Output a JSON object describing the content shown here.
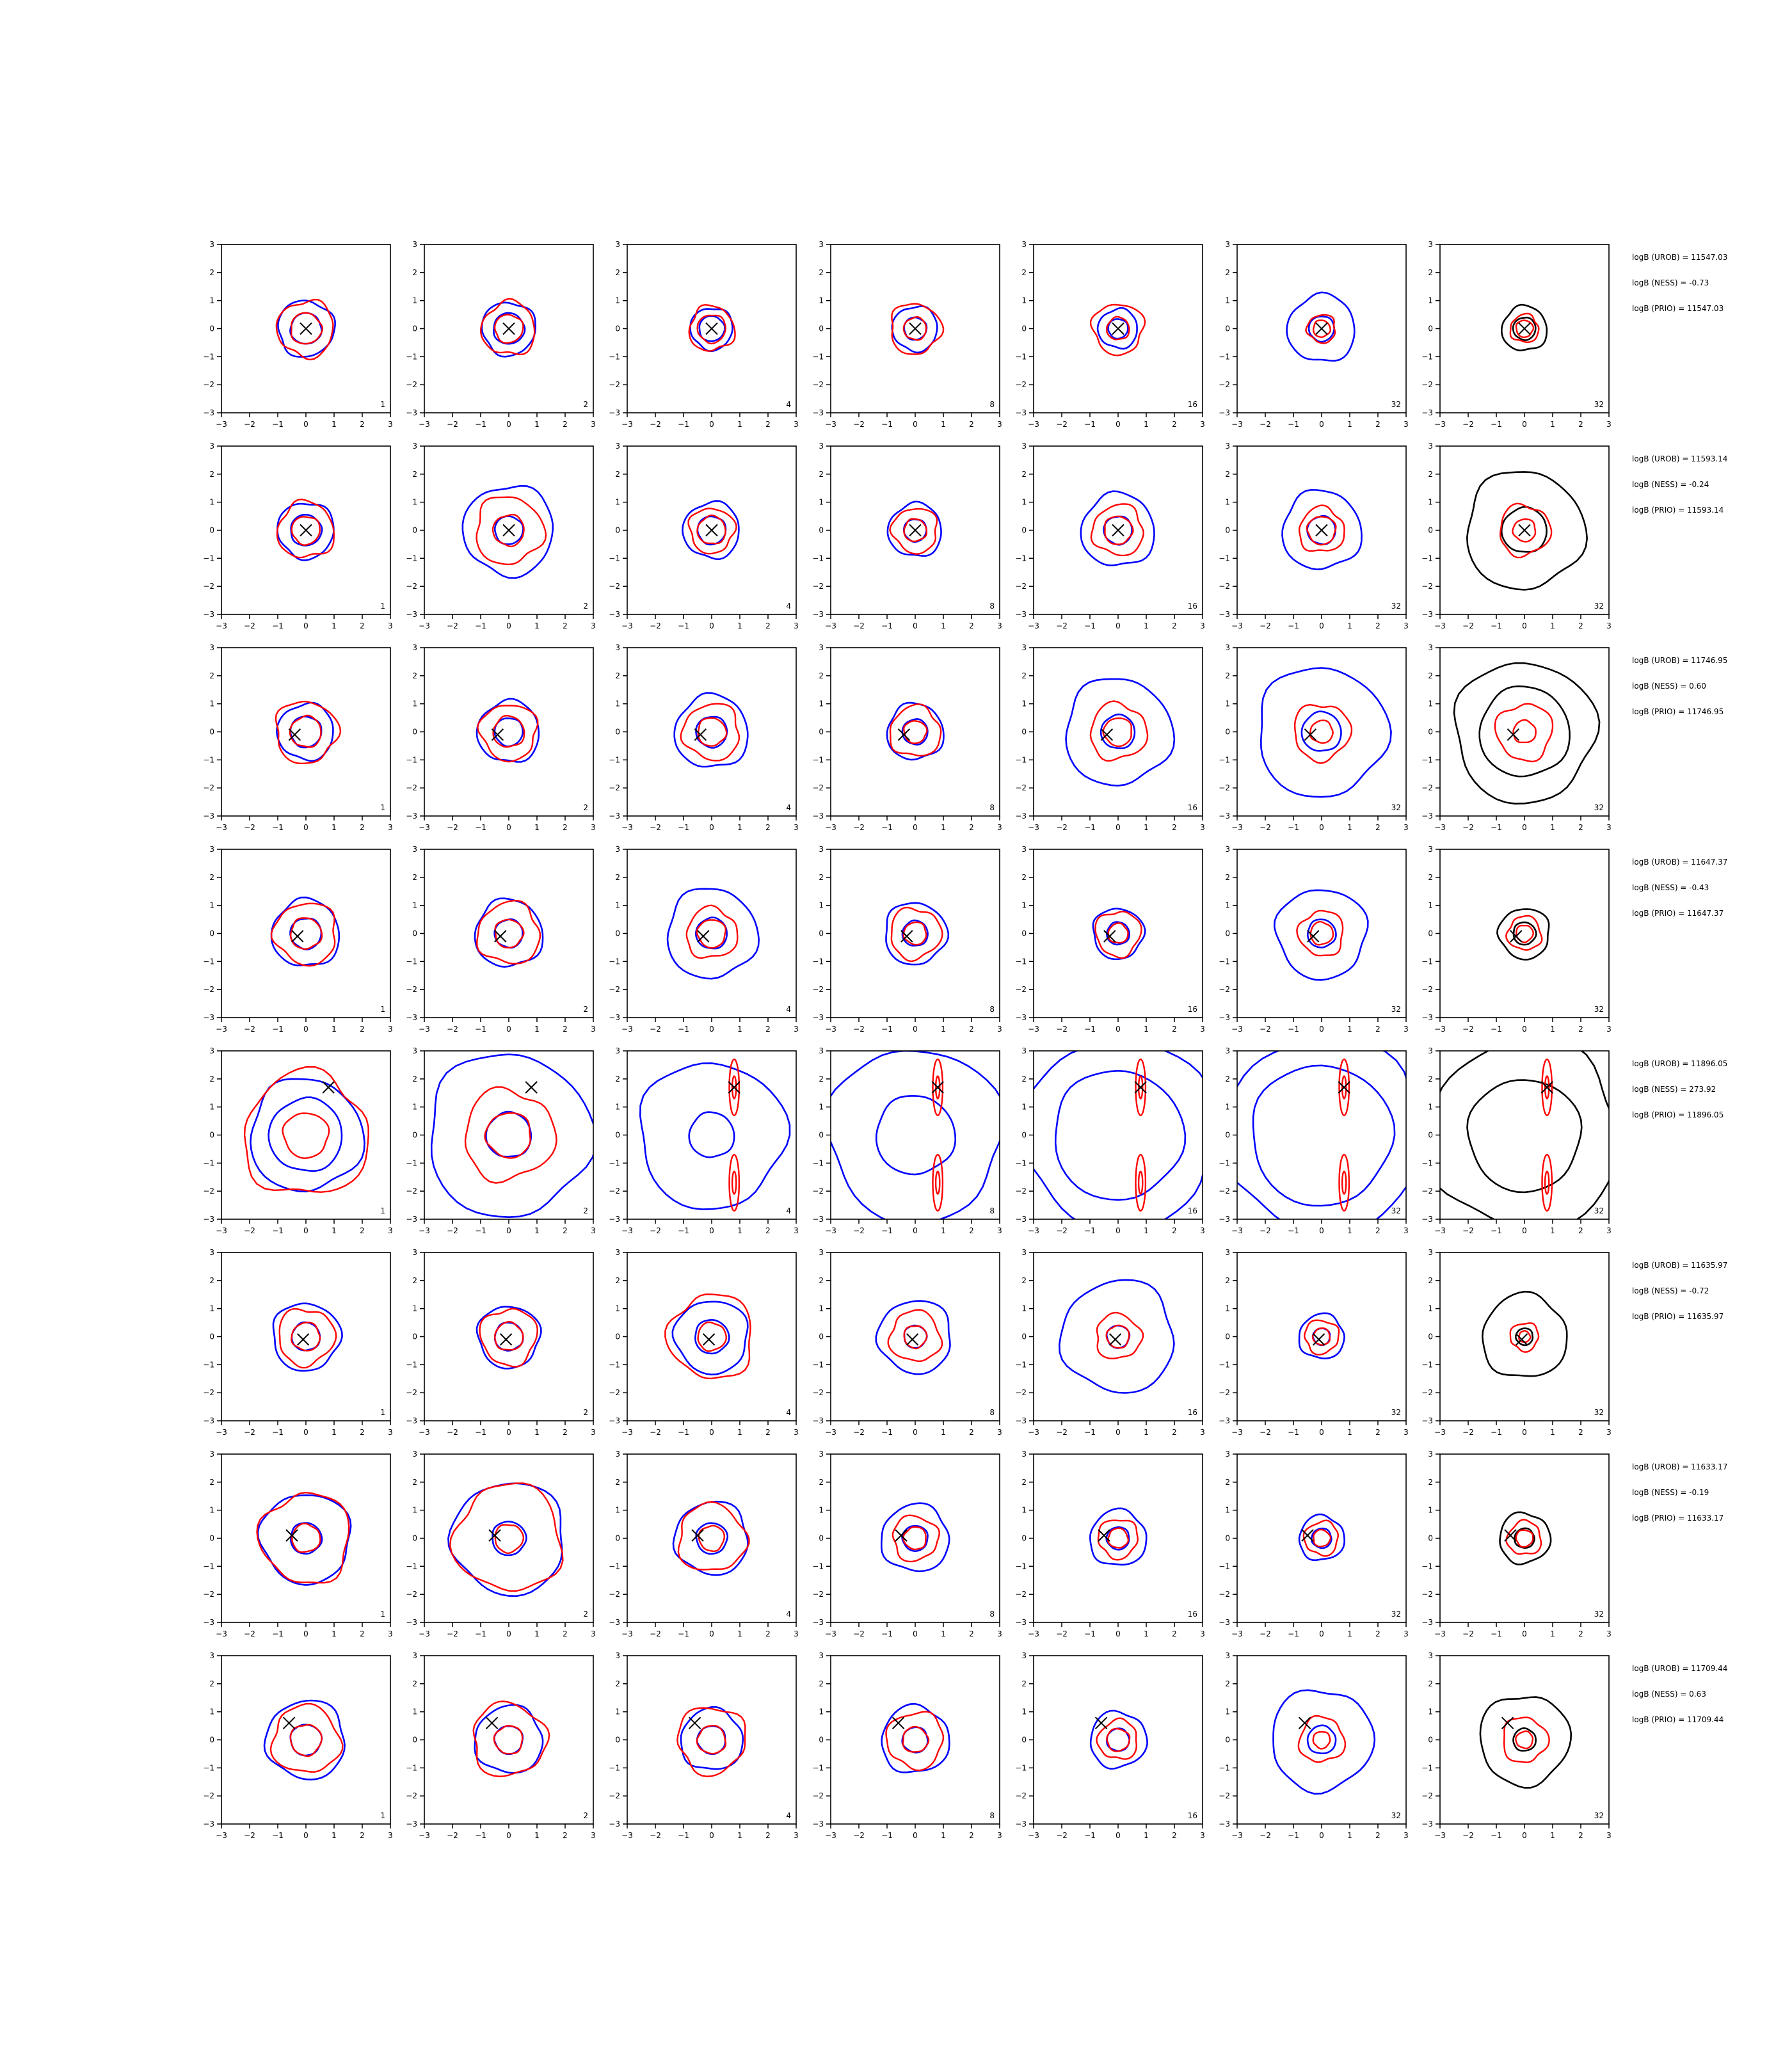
{
  "figure": {
    "background": "#ffffff",
    "colors": {
      "blue": "#0000ff",
      "red": "#ff0000",
      "black": "#000000"
    },
    "column_labels": [
      "1",
      "2",
      "4",
      "8",
      "16",
      "32",
      "32"
    ],
    "tick_labels": [
      "−3",
      "−2",
      "−1",
      "0",
      "1",
      "2",
      "3"
    ]
  },
  "chart_data": {
    "type": "contour_grid",
    "rows": 8,
    "columns": 7,
    "xlim": [
      -3,
      3
    ],
    "ylim": [
      -3,
      3
    ],
    "xticks": [
      -3,
      -2,
      -1,
      0,
      1,
      2,
      3
    ],
    "yticks": [
      -3,
      -2,
      -1,
      0,
      1,
      2,
      3
    ],
    "last_column_color": "black",
    "marker": "x",
    "row_info": [
      {
        "stats": [
          "logB (UROB) = 11547.03",
          "logB (NESS) = -0.73",
          "logB (PRIO) = 11547.03"
        ],
        "marker": [
          0,
          0
        ],
        "blue_radii": [
          [
            0.55,
            1.0
          ],
          [
            0.55,
            0.95
          ],
          [
            0.45,
            0.75
          ],
          [
            0.4,
            0.8
          ],
          [
            0.35,
            0.7
          ],
          [
            0.45,
            1.2
          ],
          [
            0.4,
            0.8
          ]
        ],
        "red_radii": [
          [
            0.55,
            1.0
          ],
          [
            0.5,
            0.95
          ],
          [
            0.5,
            0.8
          ],
          [
            0.4,
            0.9
          ],
          [
            0.4,
            0.9
          ],
          [
            0.3,
            0.5
          ],
          [
            0.3,
            0.5
          ]
        ]
      },
      {
        "stats": [
          "logB (UROB) = 11593.14",
          "logB (NESS) = -0.24",
          "logB (PRIO) = 11593.14"
        ],
        "marker": [
          0,
          0
        ],
        "blue_radii": [
          [
            0.55,
            1.0
          ],
          [
            0.5,
            1.6
          ],
          [
            0.5,
            1.0
          ],
          [
            0.4,
            0.95
          ],
          [
            0.5,
            1.3
          ],
          [
            0.5,
            1.4
          ],
          [
            0.8,
            2.1
          ]
        ],
        "red_radii": [
          [
            0.5,
            1.0
          ],
          [
            0.55,
            1.2
          ],
          [
            0.5,
            0.8
          ],
          [
            0.4,
            0.8
          ],
          [
            0.5,
            0.9
          ],
          [
            0.5,
            0.8
          ],
          [
            0.4,
            0.9
          ]
        ]
      },
      {
        "stats": [
          "logB (UROB) = 11746.95",
          "logB (NESS) = 0.60",
          "logB (PRIO) = 11746.95"
        ],
        "marker": [
          -0.4,
          -0.1
        ],
        "blue_radii": [
          [
            0.55,
            1.0
          ],
          [
            0.5,
            1.1
          ],
          [
            0.55,
            1.3
          ],
          [
            0.45,
            1.0
          ],
          [
            0.6,
            1.9
          ],
          [
            0.7,
            2.3
          ],
          [
            1.6,
            2.5
          ]
        ],
        "red_radii": [
          [
            0.55,
            1.1
          ],
          [
            0.55,
            1.0
          ],
          [
            0.5,
            1.0
          ],
          [
            0.4,
            0.9
          ],
          [
            0.5,
            1.0
          ],
          [
            0.4,
            1.0
          ],
          [
            0.4,
            1.0
          ]
        ]
      },
      {
        "stats": [
          "logB (UROB) = 11647.37",
          "logB (NESS) = -0.43",
          "logB (PRIO) = 11647.37"
        ],
        "marker": [
          -0.3,
          -0.1
        ],
        "blue_radii": [
          [
            0.55,
            1.2
          ],
          [
            0.5,
            1.2
          ],
          [
            0.55,
            1.6
          ],
          [
            0.45,
            1.1
          ],
          [
            0.4,
            0.9
          ],
          [
            0.5,
            1.6
          ],
          [
            0.4,
            0.9
          ]
        ],
        "red_radii": [
          [
            0.55,
            1.1
          ],
          [
            0.5,
            1.1
          ],
          [
            0.5,
            0.9
          ],
          [
            0.4,
            0.9
          ],
          [
            0.35,
            0.8
          ],
          [
            0.4,
            0.8
          ],
          [
            0.3,
            0.6
          ]
        ]
      },
      {
        "stats": [
          "logB (UROB) = 11896.05",
          "logB (NESS) = 273.92",
          "logB (PRIO) = 11896.05"
        ],
        "marker": [
          0.8,
          1.7
        ],
        "blue_radii": [
          [
            1.3,
            2.0
          ],
          [
            0.8,
            2.9
          ],
          [
            0.8,
            2.6
          ],
          [
            1.4,
            3.1
          ],
          [
            2.3,
            3.4
          ],
          [
            2.5,
            3.5
          ],
          [
            2.0,
            3.4
          ]
        ],
        "red_radii": [
          [
            0.8,
            2.2
          ],
          [
            0.8,
            1.6
          ],
          [
            0.2,
            0.5
          ],
          [
            0.2,
            0.5
          ],
          [
            0.2,
            0.5
          ],
          [
            0.2,
            0.5
          ],
          [
            0.2,
            0.5
          ]
        ]
      },
      {
        "stats": [
          "logB (UROB) = 11635.97",
          "logB (NESS) = -0.72",
          "logB (PRIO) = 11635.97"
        ],
        "marker": [
          -0.1,
          -0.1
        ],
        "blue_radii": [
          [
            0.5,
            1.2
          ],
          [
            0.5,
            1.1
          ],
          [
            0.6,
            1.3
          ],
          [
            0.4,
            1.3
          ],
          [
            0.4,
            2.0
          ],
          [
            0.3,
            0.8
          ],
          [
            0.3,
            1.5
          ]
        ],
        "red_radii": [
          [
            0.5,
            1.0
          ],
          [
            0.5,
            1.0
          ],
          [
            0.5,
            1.5
          ],
          [
            0.4,
            0.9
          ],
          [
            0.4,
            0.8
          ],
          [
            0.3,
            0.6
          ],
          [
            0.2,
            0.5
          ]
        ]
      },
      {
        "stats": [
          "logB (UROB) = 11633.17",
          "logB (NESS) = -0.19",
          "logB (PRIO) = 11633.17"
        ],
        "marker": [
          -0.5,
          0.1
        ],
        "blue_radii": [
          [
            0.55,
            1.6
          ],
          [
            0.6,
            2.0
          ],
          [
            0.55,
            1.3
          ],
          [
            0.45,
            1.2
          ],
          [
            0.4,
            1.0
          ],
          [
            0.35,
            0.8
          ],
          [
            0.35,
            0.9
          ]
        ],
        "red_radii": [
          [
            0.5,
            1.6
          ],
          [
            0.5,
            1.9
          ],
          [
            0.45,
            1.2
          ],
          [
            0.4,
            0.8
          ],
          [
            0.35,
            0.7
          ],
          [
            0.3,
            0.6
          ],
          [
            0.3,
            0.6
          ]
        ]
      },
      {
        "stats": [
          "logB (UROB) = 11709.44",
          "logB (NESS) = 0.63",
          "logB (PRIO) = 11709.44"
        ],
        "marker": [
          -0.6,
          0.6
        ],
        "blue_radii": [
          [
            0.55,
            1.4
          ],
          [
            0.5,
            1.2
          ],
          [
            0.5,
            1.1
          ],
          [
            0.45,
            1.2
          ],
          [
            0.4,
            1.0
          ],
          [
            0.5,
            1.8
          ],
          [
            0.4,
            1.6
          ]
        ],
        "red_radii": [
          [
            0.55,
            1.2
          ],
          [
            0.5,
            1.3
          ],
          [
            0.5,
            1.2
          ],
          [
            0.45,
            1.0
          ],
          [
            0.4,
            0.7
          ],
          [
            0.3,
            0.8
          ],
          [
            0.3,
            0.8
          ]
        ]
      }
    ]
  }
}
